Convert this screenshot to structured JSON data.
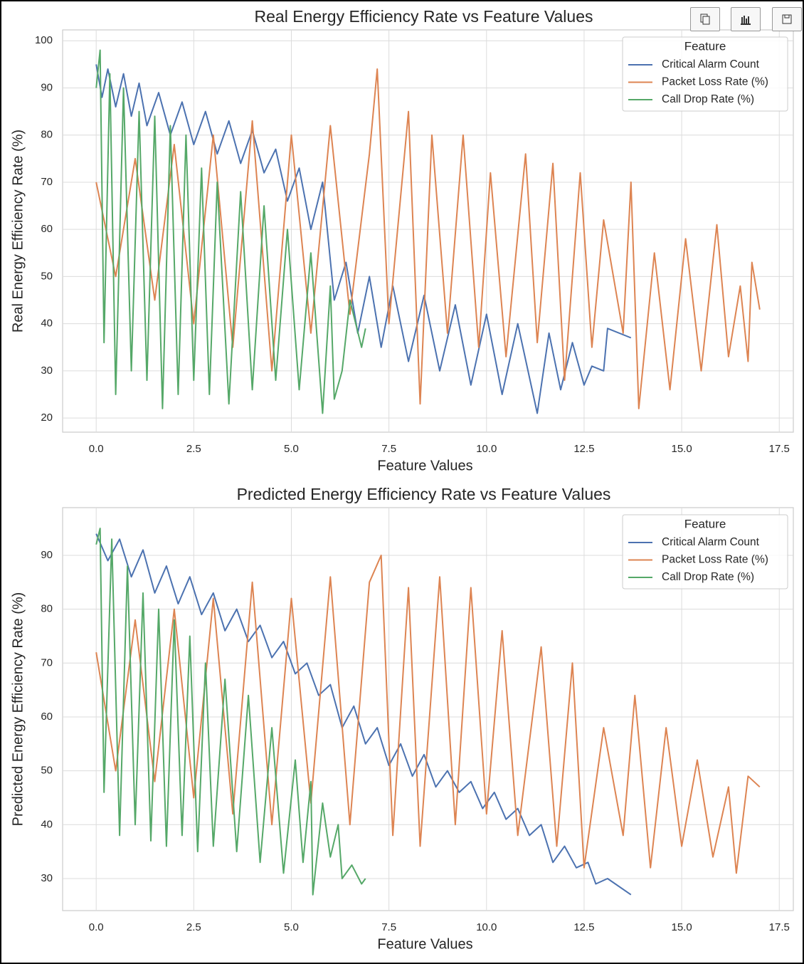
{
  "chart_data": [
    {
      "type": "line",
      "title": "Real Energy Efficiency Rate vs Feature Values",
      "x_label": "Feature Values",
      "y_label": "Real Energy Efficiency Rate (%)",
      "legend_title": "Feature",
      "legend": "upper right",
      "grid": true,
      "xlim": [
        -0.86,
        17.86
      ],
      "ylim": [
        17,
        102.3
      ],
      "xticks": [
        {
          "value": 0,
          "label": "0.0"
        },
        2.5,
        {
          "value": 5,
          "label": "5.0"
        },
        7.5,
        {
          "value": 10,
          "label": "10.0"
        },
        12.5,
        {
          "value": 15,
          "label": "15.0"
        },
        17.5
      ],
      "yticks": [
        20,
        30,
        40,
        50,
        60,
        70,
        80,
        90,
        100
      ],
      "series": [
        {
          "name": "Critical Alarm Count",
          "color": "#4c72b0",
          "x": [
            0,
            0.15,
            0.3,
            0.5,
            0.7,
            0.9,
            1.1,
            1.3,
            1.6,
            1.9,
            2.2,
            2.5,
            2.8,
            3.1,
            3.4,
            3.7,
            4.0,
            4.3,
            4.6,
            4.9,
            5.2,
            5.5,
            5.8,
            6.1,
            6.4,
            6.7,
            7.0,
            7.3,
            7.6,
            8.0,
            8.4,
            8.8,
            9.2,
            9.6,
            10.0,
            10.4,
            10.8,
            11.3,
            11.6,
            11.9,
            12.2,
            12.5,
            12.7,
            13.0,
            13.1,
            13.7
          ],
          "values": [
            95,
            88,
            94,
            86,
            93,
            84,
            91,
            82,
            89,
            80,
            87,
            78,
            85,
            76,
            83,
            74,
            81,
            72,
            77,
            66,
            73,
            60,
            70,
            45,
            53,
            38,
            50,
            35,
            48,
            32,
            46,
            30,
            44,
            27,
            42,
            25,
            40,
            21,
            38,
            26,
            36,
            27,
            31,
            30,
            39,
            37
          ]
        },
        {
          "name": "Packet Loss Rate (%)",
          "color": "#dd8452",
          "x": [
            0,
            0.5,
            1,
            1.5,
            2,
            2.5,
            3,
            3.5,
            4,
            4.5,
            5,
            5.5,
            6,
            6.5,
            7,
            7.2,
            7.5,
            8,
            8.3,
            8.6,
            9,
            9.4,
            9.8,
            10.1,
            10.5,
            11,
            11.3,
            11.7,
            12,
            12.4,
            12.7,
            13,
            13.5,
            13.7,
            13.9,
            14.3,
            14.7,
            15.1,
            15.5,
            15.9,
            16.2,
            16.5,
            16.7,
            16.8,
            17
          ],
          "values": [
            70,
            50,
            75,
            45,
            78,
            40,
            80,
            35,
            83,
            30,
            80,
            38,
            82,
            42,
            76,
            94,
            40,
            85,
            23,
            80,
            38,
            80,
            35,
            72,
            33,
            76,
            36,
            74,
            28,
            72,
            35,
            62,
            38,
            70,
            22,
            55,
            26,
            58,
            30,
            61,
            33,
            48,
            32,
            53,
            43
          ]
        },
        {
          "name": "Call Drop Rate (%)",
          "color": "#55a868",
          "x": [
            0,
            0.1,
            0.2,
            0.35,
            0.5,
            0.7,
            0.9,
            1.1,
            1.3,
            1.5,
            1.7,
            1.9,
            2.1,
            2.3,
            2.5,
            2.7,
            2.9,
            3.1,
            3.4,
            3.7,
            4.0,
            4.3,
            4.6,
            4.9,
            5.2,
            5.5,
            5.8,
            6.0,
            6.1,
            6.3,
            6.5,
            6.8,
            6.9
          ],
          "values": [
            90,
            98,
            36,
            93,
            25,
            90,
            30,
            85,
            28,
            84,
            22,
            82,
            25,
            80,
            28,
            73,
            25,
            70,
            23,
            68,
            26,
            65,
            28,
            60,
            26,
            55,
            21,
            48,
            24,
            30,
            45,
            35,
            39
          ]
        }
      ]
    },
    {
      "type": "line",
      "title": "Predicted Energy Efficiency Rate vs Feature Values",
      "x_label": "Feature Values",
      "y_label": "Predicted Energy Efficiency Rate (%)",
      "legend_title": "Feature",
      "legend": "upper right",
      "grid": true,
      "xlim": [
        -0.86,
        17.86
      ],
      "ylim": [
        24.05,
        98.85
      ],
      "xticks": [
        {
          "value": 0,
          "label": "0.0"
        },
        2.5,
        {
          "value": 5,
          "label": "5.0"
        },
        7.5,
        {
          "value": 10,
          "label": "10.0"
        },
        12.5,
        {
          "value": 15,
          "label": "15.0"
        },
        17.5
      ],
      "yticks": [
        30,
        40,
        50,
        60,
        70,
        80,
        90
      ],
      "series": [
        {
          "name": "Critical Alarm Count",
          "color": "#4c72b0",
          "x": [
            0,
            0.3,
            0.6,
            0.9,
            1.2,
            1.5,
            1.8,
            2.1,
            2.4,
            2.7,
            3.0,
            3.3,
            3.6,
            3.9,
            4.2,
            4.5,
            4.8,
            5.1,
            5.4,
            5.7,
            6.0,
            6.3,
            6.6,
            6.9,
            7.2,
            7.5,
            7.8,
            8.1,
            8.4,
            8.7,
            9.0,
            9.3,
            9.6,
            9.9,
            10.2,
            10.5,
            10.8,
            11.1,
            11.4,
            11.7,
            12.0,
            12.3,
            12.6,
            12.8,
            13.1,
            13.7
          ],
          "values": [
            94,
            89,
            93,
            86,
            91,
            83,
            88,
            81,
            86,
            79,
            83,
            76,
            80,
            74,
            77,
            71,
            74,
            68,
            70,
            64,
            66,
            58,
            62,
            55,
            58,
            51,
            55,
            49,
            53,
            47,
            50,
            46,
            48,
            43,
            46,
            41,
            43,
            38,
            40,
            33,
            36,
            32,
            33,
            29,
            30,
            27
          ]
        },
        {
          "name": "Packet Loss Rate (%)",
          "color": "#dd8452",
          "x": [
            0,
            0.5,
            1,
            1.5,
            2,
            2.5,
            3,
            3.5,
            4,
            4.5,
            5,
            5.5,
            6,
            6.5,
            7,
            7.3,
            7.6,
            8,
            8.3,
            8.8,
            9.2,
            9.6,
            10,
            10.4,
            10.8,
            11.4,
            11.8,
            12.2,
            12.5,
            13,
            13.5,
            13.8,
            14.2,
            14.6,
            15,
            15.4,
            15.8,
            16.2,
            16.4,
            16.7,
            17
          ],
          "values": [
            72,
            50,
            78,
            48,
            80,
            45,
            82,
            42,
            85,
            40,
            82,
            44,
            86,
            40,
            85,
            90,
            38,
            84,
            36,
            86,
            40,
            84,
            42,
            76,
            38,
            73,
            36,
            70,
            32,
            58,
            38,
            64,
            32,
            58,
            36,
            52,
            34,
            47,
            31,
            49,
            47
          ]
        },
        {
          "name": "Call Drop Rate (%)",
          "color": "#55a868",
          "x": [
            0,
            0.1,
            0.2,
            0.4,
            0.6,
            0.8,
            1.0,
            1.2,
            1.4,
            1.6,
            1.8,
            2.0,
            2.2,
            2.4,
            2.6,
            2.8,
            3.0,
            3.3,
            3.6,
            3.9,
            4.2,
            4.5,
            4.8,
            5.1,
            5.3,
            5.5,
            5.55,
            5.8,
            6.0,
            6.2,
            6.3,
            6.55,
            6.8,
            6.9
          ],
          "values": [
            92,
            95,
            46,
            93,
            38,
            88,
            40,
            83,
            37,
            80,
            36,
            78,
            38,
            75,
            35,
            70,
            36,
            67,
            35,
            64,
            33,
            58,
            31,
            52,
            33,
            48,
            27,
            44,
            34,
            40,
            30,
            32.5,
            29,
            30
          ]
        }
      ]
    }
  ]
}
